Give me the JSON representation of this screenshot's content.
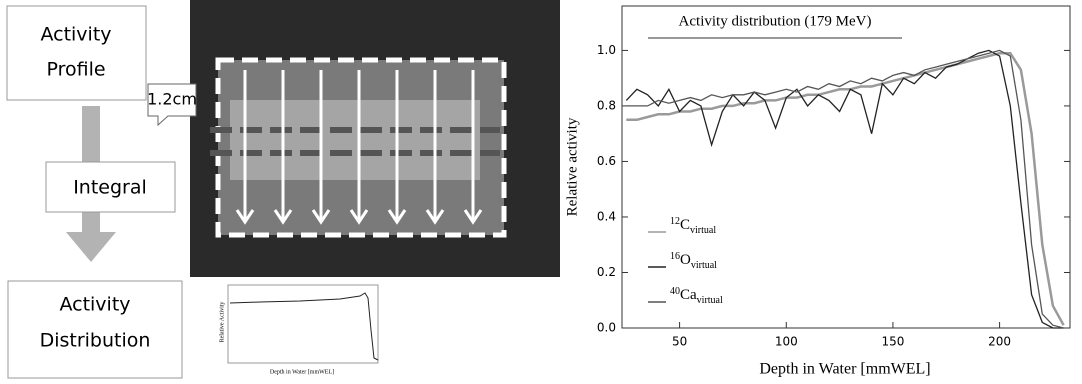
{
  "diagram": {
    "profile_box": [
      "Activity",
      "Profile"
    ],
    "width_label": "1.2cm",
    "integral_box": "Integral",
    "distribution_box": [
      "Activity",
      "Distribution"
    ],
    "thumbnail": {
      "y_label": "Relative Activity",
      "x_label": "Depth in Water [mmWEL]"
    }
  },
  "chart_data": {
    "type": "line",
    "title": "Activity distribution (179 MeV)",
    "x_label": "Depth in Water [mmWEL]",
    "y_label": "Relative activity",
    "x": [
      25,
      30,
      35,
      40,
      45,
      50,
      55,
      60,
      65,
      70,
      75,
      80,
      85,
      90,
      95,
      100,
      105,
      110,
      115,
      120,
      125,
      130,
      135,
      140,
      145,
      150,
      155,
      160,
      165,
      170,
      175,
      180,
      185,
      190,
      195,
      200,
      205,
      210,
      215,
      220,
      225,
      230
    ],
    "series": [
      {
        "name": {
          "mass": "12",
          "symbol": "C",
          "sub": "virtual"
        },
        "color": "#9a9a9a",
        "values": [
          0.75,
          0.75,
          0.76,
          0.77,
          0.77,
          0.78,
          0.78,
          0.79,
          0.79,
          0.8,
          0.8,
          0.81,
          0.81,
          0.82,
          0.82,
          0.83,
          0.83,
          0.84,
          0.84,
          0.85,
          0.86,
          0.86,
          0.87,
          0.87,
          0.88,
          0.89,
          0.9,
          0.91,
          0.92,
          0.93,
          0.94,
          0.95,
          0.96,
          0.97,
          0.98,
          0.99,
          0.99,
          0.93,
          0.7,
          0.3,
          0.08,
          0.01
        ]
      },
      {
        "name": {
          "mass": "16",
          "symbol": "O",
          "sub": "virtual"
        },
        "color": "#222222",
        "values": [
          0.82,
          0.86,
          0.84,
          0.8,
          0.86,
          0.78,
          0.82,
          0.8,
          0.66,
          0.78,
          0.84,
          0.8,
          0.85,
          0.82,
          0.72,
          0.83,
          0.86,
          0.8,
          0.84,
          0.82,
          0.78,
          0.86,
          0.84,
          0.7,
          0.88,
          0.84,
          0.9,
          0.88,
          0.92,
          0.9,
          0.94,
          0.95,
          0.97,
          0.99,
          1.0,
          0.98,
          0.8,
          0.45,
          0.12,
          0.02,
          0.0,
          0.0
        ]
      },
      {
        "name": {
          "mass": "40",
          "symbol": "Ca",
          "sub": "virtual"
        },
        "color": "#555555",
        "values": [
          0.8,
          0.8,
          0.8,
          0.82,
          0.81,
          0.82,
          0.83,
          0.82,
          0.84,
          0.83,
          0.84,
          0.84,
          0.85,
          0.84,
          0.85,
          0.86,
          0.85,
          0.87,
          0.86,
          0.88,
          0.87,
          0.89,
          0.88,
          0.9,
          0.89,
          0.91,
          0.92,
          0.91,
          0.93,
          0.94,
          0.95,
          0.96,
          0.97,
          0.98,
          0.99,
          1.0,
          0.98,
          0.75,
          0.3,
          0.05,
          0.01,
          0.0
        ]
      }
    ],
    "xlim": [
      23,
      233
    ],
    "xticks": [
      50,
      100,
      150,
      200
    ],
    "ylim": [
      0,
      1.16
    ],
    "yticks": [
      {
        "value": 0,
        "label": "0.0"
      },
      0.2,
      0.4,
      0.6,
      0.8,
      {
        "value": 1,
        "label": "1.0"
      }
    ]
  }
}
